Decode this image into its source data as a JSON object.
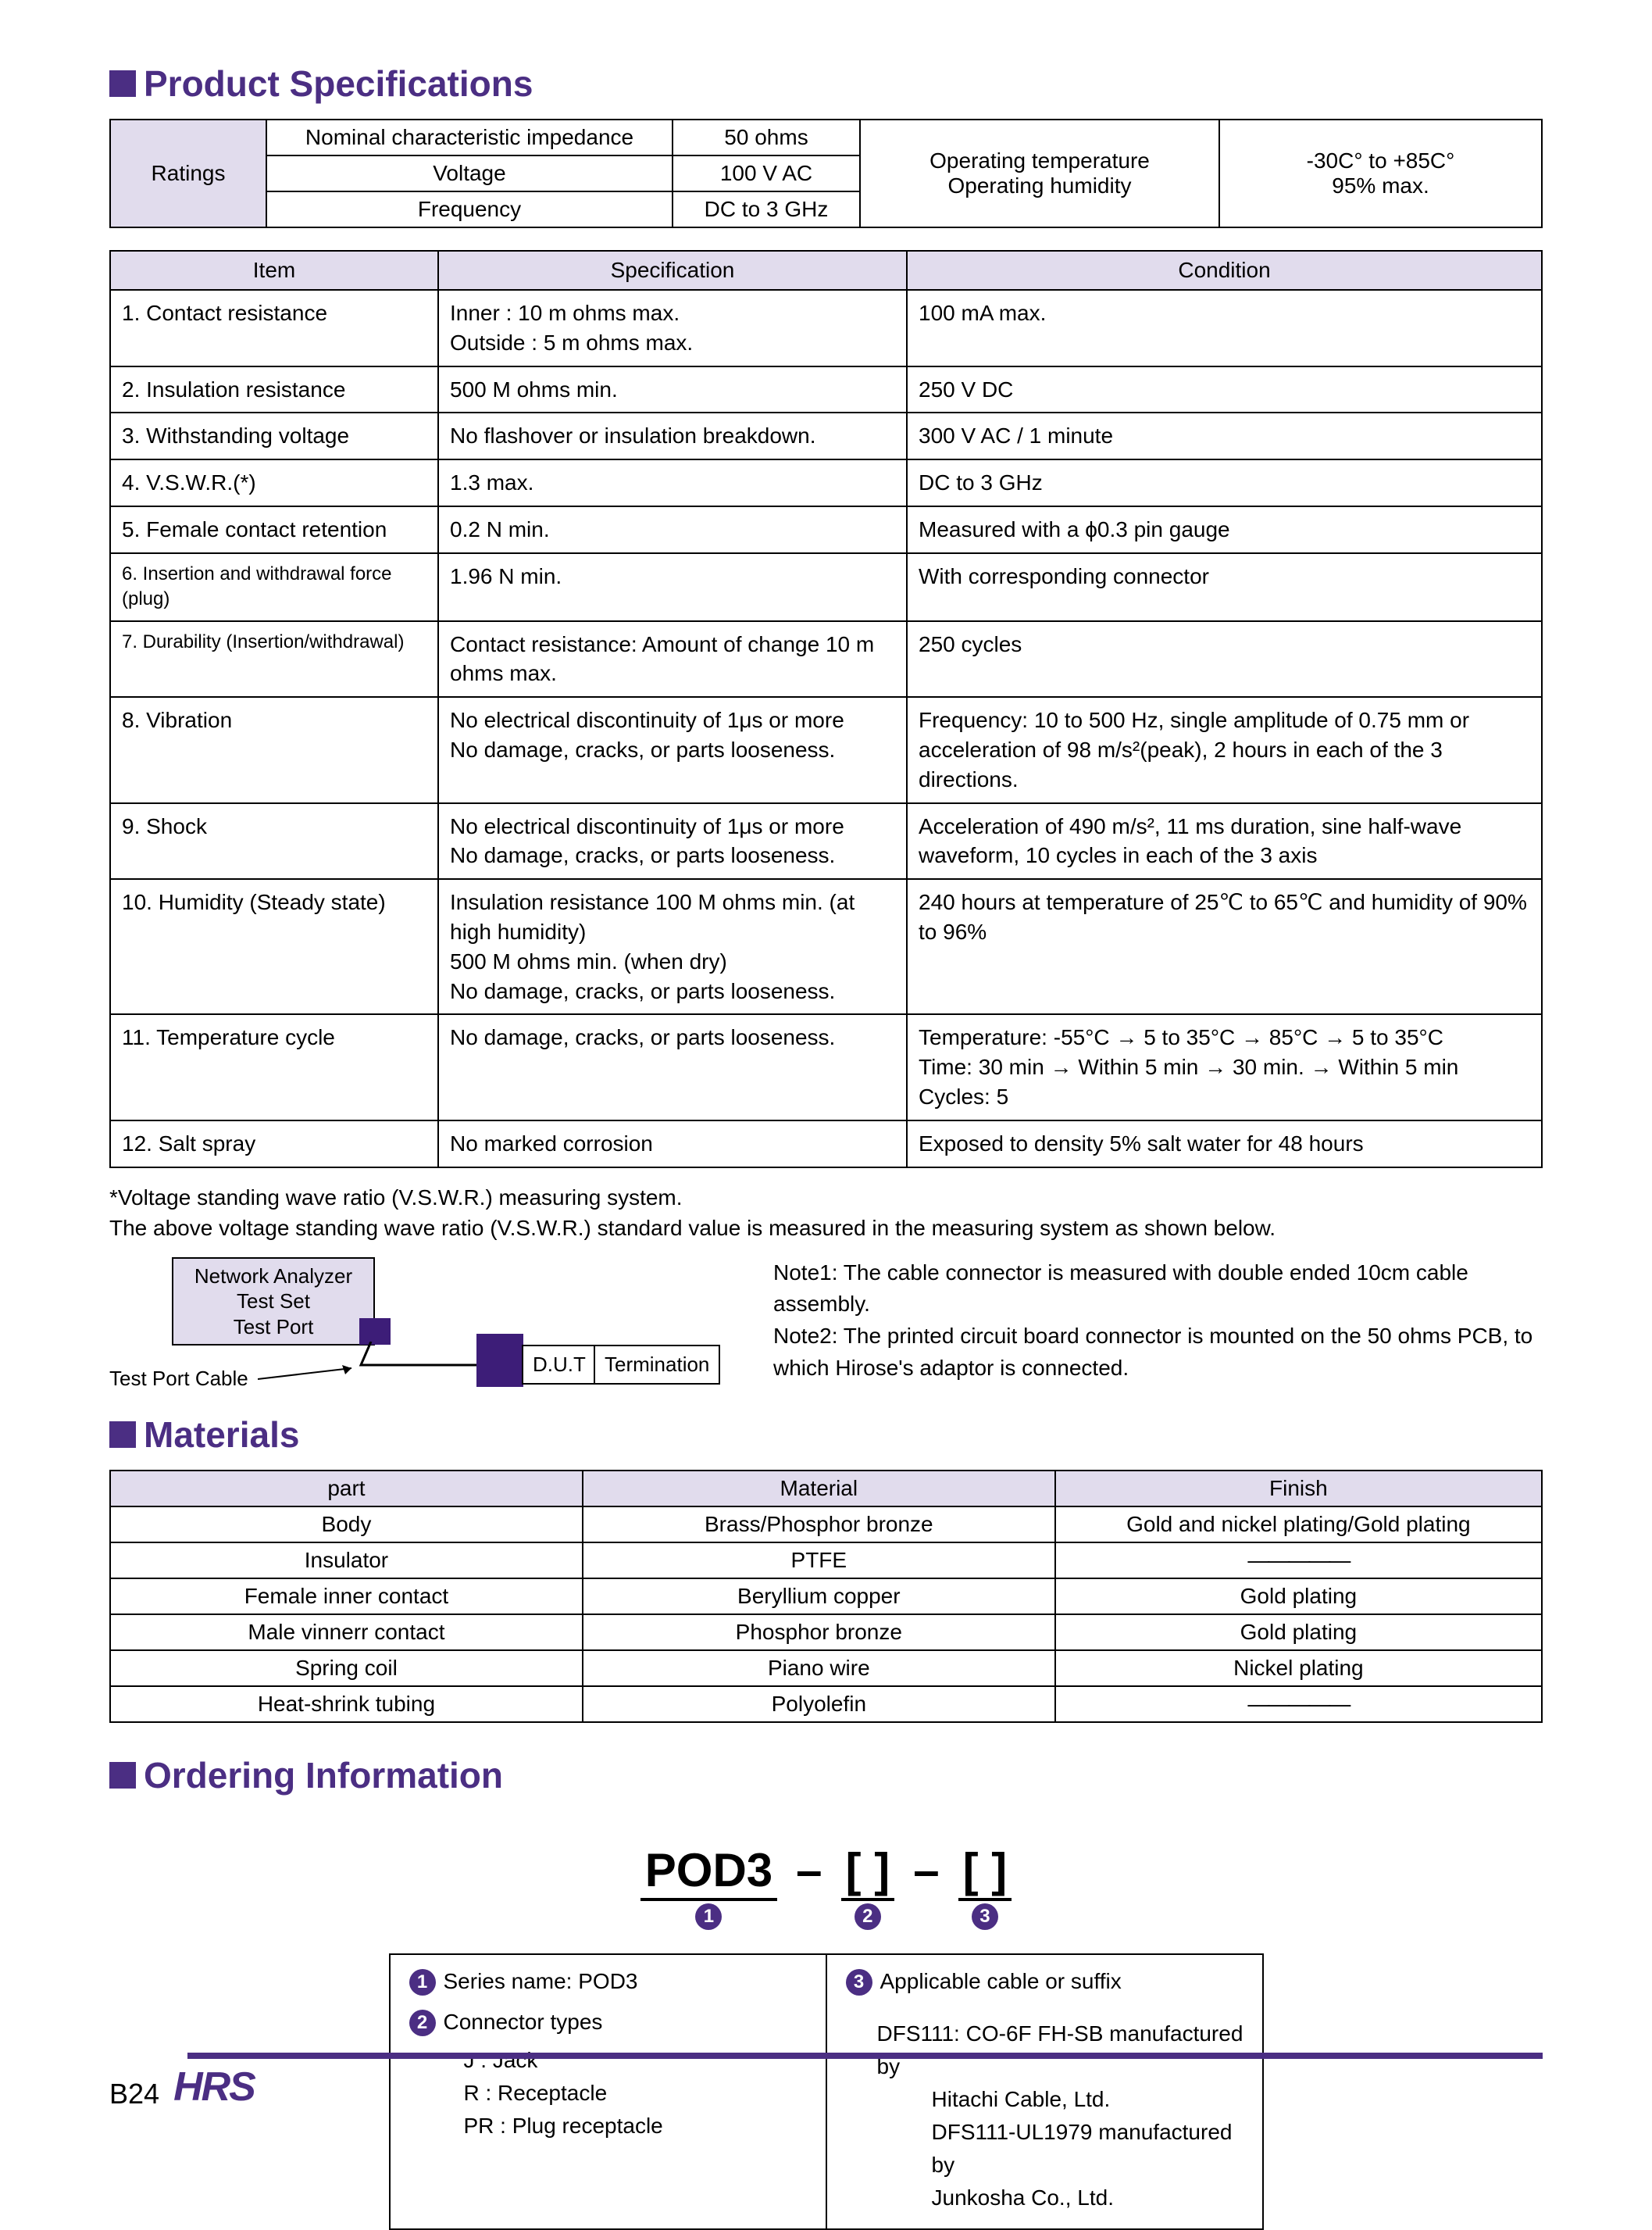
{
  "section_product_spec": "Product Specifications",
  "section_materials": "Materials",
  "section_ordering": "Ordering Information",
  "ratings": {
    "rowhead": "Ratings",
    "rows": [
      {
        "label": "Nominal characteristic impedance",
        "value": "50 ohms"
      },
      {
        "label": "Voltage",
        "value": "100 V AC"
      },
      {
        "label": "Frequency",
        "value": "DC to 3 GHz"
      }
    ],
    "env_label": "Operating temperature\nOperating humidity",
    "env_value": "-30C° to +85C°\n95% max."
  },
  "spec_headers": {
    "item": "Item",
    "spec": "Specification",
    "cond": "Condition"
  },
  "spec_rows": [
    {
      "item": "1. Contact resistance",
      "spec": "Inner    : 10 m ohms max.\nOutside : 5 m ohms max.",
      "cond": "100 mA max."
    },
    {
      "item": "2. Insulation resistance",
      "spec": "500 M ohms min.",
      "cond": "250 V DC"
    },
    {
      "item": "3. Withstanding voltage",
      "spec": "No flashover or insulation breakdown.",
      "cond": "300 V AC / 1 minute"
    },
    {
      "item": "4. V.S.W.R.(*)",
      "spec": "1.3 max.",
      "cond": "DC to 3 GHz"
    },
    {
      "item": "5. Female contact retention",
      "spec": "0.2 N min.",
      "cond": "Measured with a ϕ0.3 pin gauge"
    },
    {
      "item": "6. Insertion and withdrawal force (plug)",
      "spec": "1.96 N min.",
      "cond": "With corresponding connector"
    },
    {
      "item": "7. Durability (Insertion/withdrawal)",
      "spec": "Contact resistance: Amount of change 10 m ohms max.",
      "cond": "250 cycles"
    },
    {
      "item": "8. Vibration",
      "spec": "No electrical discontinuity of 1μs or more\nNo damage, cracks, or parts looseness.",
      "cond": "Frequency: 10 to 500 Hz, single amplitude of 0.75 mm or acceleration of 98 m/s²(peak), 2 hours in each of the 3 directions."
    },
    {
      "item": "9. Shock",
      "spec": "No electrical discontinuity of 1μs or more\nNo damage, cracks, or parts looseness.",
      "cond": "Acceleration of 490 m/s², 11 ms duration, sine half-wave waveform, 10 cycles in each of the 3 axis"
    },
    {
      "item": "10. Humidity (Steady state)",
      "spec": "Insulation resistance 100 M ohms min. (at high humidity)\n                                    500 M ohms min. (when dry)\nNo damage, cracks, or parts looseness.",
      "cond": "240 hours at temperature of 25℃ to 65℃ and humidity of 90% to 96%"
    },
    {
      "item": "11. Temperature cycle",
      "spec": "No damage, cracks, or parts looseness.",
      "cond": "Temperature:  -55°C → 5 to 35°C → 85°C → 5 to 35°C\nTime:               30 min → Within 5 min → 30 min. → Within 5 min\nCycles:            5"
    },
    {
      "item": "12. Salt spray",
      "spec": "No marked corrosion",
      "cond": "Exposed to density 5% salt water for 48 hours"
    }
  ],
  "footnote1": "*Voltage standing wave ratio (V.S.W.R.) measuring system.",
  "footnote2": "The above voltage standing wave ratio (V.S.W.R.) standard value is measured in the measuring system as shown below.",
  "diagram": {
    "analyzer": "Network Analyzer\nTest Set\nTest Port",
    "dut": "D.U.T",
    "term": "Termination",
    "cable": "Test Port Cable"
  },
  "notes": {
    "n1": "Note1: The cable connector is measured with double ended 10cm cable assembly.",
    "n2": "Note2: The printed circuit board connector is mounted on the 50 ohms PCB, to which Hirose's adaptor is connected."
  },
  "mat_headers": {
    "part": "part",
    "material": "Material",
    "finish": "Finish"
  },
  "mat_rows": [
    {
      "part": "Body",
      "material": "Brass/Phosphor bronze",
      "finish": "Gold and nickel plating/Gold plating"
    },
    {
      "part": "Insulator",
      "material": "PTFE",
      "finish": "—————"
    },
    {
      "part": "Female inner contact",
      "material": "Beryllium copper",
      "finish": "Gold plating"
    },
    {
      "part": "Male vinnerr contact",
      "material": "Phosphor bronze",
      "finish": "Gold plating"
    },
    {
      "part": "Spring coil",
      "material": "Piano wire",
      "finish": "Nickel plating"
    },
    {
      "part": "Heat-shrink tubing",
      "material": "Polyolefin",
      "finish": "—————"
    }
  ],
  "ordering": {
    "code": "POD3",
    "dash": "–",
    "bracket": "[     ]",
    "p1": "1",
    "p2": "2",
    "p3": "3",
    "left": {
      "l1": "Series name: POD3",
      "l2": "Connector types",
      "rows": [
        "J      : Jack",
        "R     : Receptacle",
        "PR  : Plug receptacle"
      ]
    },
    "right": {
      "l1": "Applicable cable or suffix",
      "rows": [
        "DFS111: CO-6F FH-SB manufactured by",
        "Hitachi Cable, Ltd.",
        "DFS111-UL1979 manufactured by",
        "Junkosha Co., Ltd."
      ]
    }
  },
  "footer": {
    "page": "B24",
    "logo": "HRS"
  }
}
